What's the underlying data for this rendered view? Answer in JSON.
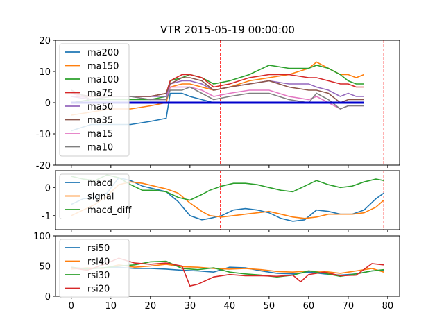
{
  "chart_data": [
    {
      "type": "line",
      "title": "VTR 2015-05-19 00:00:00",
      "xlim": [
        -4,
        83
      ],
      "ylim": [
        -20,
        20
      ],
      "yticks": [
        -20,
        -10,
        0,
        10,
        20
      ],
      "vlines": [
        37.7,
        79
      ],
      "baseline": {
        "x": [
          0,
          74
        ],
        "y": 0
      },
      "legend_position": "upper-left",
      "series": [
        {
          "name": "ma200",
          "color": "#1f77b4",
          "x": [
            0,
            5,
            10,
            15,
            20,
            24,
            25,
            28,
            30,
            33,
            36,
            40,
            45,
            50,
            55,
            60,
            62,
            65,
            68,
            70,
            72,
            74
          ],
          "y": [
            -9,
            -7,
            -7,
            -7,
            -6,
            -5,
            3,
            3,
            2,
            1,
            0,
            0,
            0,
            0,
            0,
            0,
            0,
            0,
            0,
            0,
            0,
            0
          ]
        },
        {
          "name": "ma150",
          "color": "#ff7f0e",
          "x": [
            0,
            5,
            10,
            15,
            20,
            24,
            25,
            28,
            30,
            33,
            36,
            40,
            45,
            50,
            55,
            60,
            62,
            65,
            68,
            70,
            72,
            74
          ],
          "y": [
            -4,
            -3,
            -2,
            -2,
            -1,
            0,
            5,
            6,
            6,
            5,
            4,
            5,
            7,
            8,
            9,
            11,
            13,
            11,
            9,
            9,
            8,
            9
          ]
        },
        {
          "name": "ma100",
          "color": "#2ca02c",
          "x": [
            0,
            5,
            10,
            15,
            20,
            24,
            25,
            28,
            30,
            33,
            36,
            40,
            45,
            50,
            55,
            60,
            62,
            65,
            68,
            70,
            72,
            74
          ],
          "y": [
            0,
            1,
            1,
            1,
            1,
            2,
            7,
            8,
            9,
            8,
            6,
            7,
            9,
            12,
            11,
            11,
            12,
            11,
            9,
            7,
            6,
            6
          ]
        },
        {
          "name": "ma75",
          "color": "#d62728",
          "x": [
            0,
            5,
            10,
            15,
            20,
            24,
            25,
            28,
            30,
            33,
            36,
            40,
            45,
            50,
            55,
            60,
            62,
            65,
            68,
            70,
            72,
            74
          ],
          "y": [
            2,
            2,
            2,
            2,
            2,
            3,
            7,
            9,
            9,
            8,
            5,
            6,
            8,
            9,
            9,
            8,
            8,
            7,
            6,
            6,
            5,
            5
          ]
        },
        {
          "name": "ma50",
          "color": "#9467bd",
          "x": [
            0,
            5,
            10,
            15,
            20,
            24,
            25,
            28,
            30,
            33,
            36,
            40,
            45,
            50,
            55,
            60,
            62,
            65,
            68,
            70,
            72,
            74
          ],
          "y": [
            2,
            1,
            2,
            2,
            2,
            2,
            6,
            7,
            7,
            6,
            4,
            5,
            6,
            7,
            6,
            6,
            5,
            4,
            2,
            3,
            2,
            2
          ]
        },
        {
          "name": "ma35",
          "color": "#8c564b",
          "x": [
            0,
            5,
            10,
            15,
            20,
            24,
            25,
            28,
            30,
            33,
            36,
            40,
            45,
            50,
            55,
            60,
            62,
            65,
            68,
            70,
            72,
            74
          ],
          "y": [
            3,
            2,
            2,
            2,
            2,
            3,
            6,
            8,
            8,
            7,
            4,
            5,
            6,
            7,
            5,
            4,
            4,
            3,
            0,
            1,
            1,
            1
          ]
        },
        {
          "name": "ma15",
          "color": "#e377c2",
          "x": [
            0,
            5,
            10,
            15,
            20,
            24,
            25,
            28,
            30,
            33,
            36,
            40,
            45,
            50,
            55,
            60,
            62,
            65,
            68,
            70,
            72,
            74
          ],
          "y": [
            3,
            1,
            2,
            2,
            1,
            1,
            5,
            5,
            5,
            4,
            2,
            3,
            4,
            4,
            2,
            1,
            2,
            0,
            -2,
            -1,
            -1,
            -1
          ]
        },
        {
          "name": "ma10",
          "color": "#7f7f7f",
          "x": [
            0,
            5,
            10,
            15,
            20,
            24,
            25,
            28,
            30,
            33,
            36,
            40,
            45,
            50,
            55,
            60,
            62,
            65,
            68,
            70,
            72,
            74
          ],
          "y": [
            4,
            1,
            2,
            2,
            1,
            1,
            4,
            4,
            5,
            3,
            1,
            2,
            3,
            3,
            1,
            0,
            3,
            1,
            -2,
            -1,
            -1,
            -1
          ]
        }
      ]
    },
    {
      "type": "line",
      "xlim": [
        -4,
        83
      ],
      "ylim": [
        -1.5,
        0.6
      ],
      "yticks": [
        -1,
        0
      ],
      "vlines": [
        37.7,
        79
      ],
      "legend_position": "upper-left",
      "series": [
        {
          "name": "macd",
          "color": "#1f77b4",
          "x": [
            0,
            3,
            6,
            9,
            12,
            15,
            18,
            21,
            24,
            27,
            30,
            33,
            35,
            38,
            41,
            44,
            47,
            50,
            53,
            56,
            59,
            62,
            65,
            68,
            71,
            74,
            77,
            79
          ],
          "y": [
            -0.6,
            -0.4,
            -0.35,
            -0.2,
            0.35,
            0.25,
            0.05,
            -0.05,
            -0.15,
            -0.5,
            -1.0,
            -1.15,
            -1.1,
            -1.0,
            -0.8,
            -0.75,
            -0.8,
            -0.9,
            -1.1,
            -1.2,
            -1.15,
            -0.8,
            -0.85,
            -0.95,
            -0.95,
            -0.8,
            -0.4,
            -0.2
          ]
        },
        {
          "name": "signal",
          "color": "#ff7f0e",
          "x": [
            0,
            3,
            6,
            9,
            12,
            15,
            18,
            21,
            24,
            27,
            30,
            33,
            35,
            38,
            41,
            44,
            47,
            50,
            53,
            56,
            59,
            62,
            65,
            68,
            71,
            74,
            77,
            79
          ],
          "y": [
            -1.0,
            -0.8,
            -0.6,
            -0.3,
            0.1,
            0.2,
            0.15,
            0.05,
            -0.05,
            -0.2,
            -0.55,
            -0.85,
            -1.0,
            -1.05,
            -1.0,
            -0.95,
            -0.9,
            -0.85,
            -0.95,
            -1.05,
            -1.1,
            -1.05,
            -0.95,
            -0.95,
            -0.95,
            -0.9,
            -0.7,
            -0.45
          ]
        },
        {
          "name": "macd_diff",
          "color": "#2ca02c",
          "x": [
            0,
            3,
            6,
            9,
            12,
            15,
            18,
            21,
            24,
            27,
            30,
            33,
            35,
            38,
            41,
            44,
            47,
            50,
            53,
            56,
            59,
            62,
            65,
            68,
            71,
            74,
            77,
            79
          ],
          "y": [
            0.4,
            0.3,
            0.25,
            0.45,
            0.35,
            0.1,
            -0.1,
            -0.1,
            -0.15,
            -0.35,
            -0.45,
            -0.25,
            -0.1,
            0.05,
            0.15,
            0.15,
            0.1,
            0.0,
            -0.1,
            -0.15,
            0.05,
            0.25,
            0.1,
            0.0,
            0.05,
            0.2,
            0.3,
            0.25
          ]
        }
      ]
    },
    {
      "type": "line",
      "xlim": [
        -4,
        83
      ],
      "ylim": [
        0,
        100
      ],
      "yticks": [
        0,
        50,
        100
      ],
      "xticks": [
        0,
        10,
        20,
        30,
        40,
        50,
        60,
        70,
        80
      ],
      "legend_position": "upper-left",
      "series": [
        {
          "name": "rsi50",
          "color": "#1f77b4",
          "x": [
            0,
            4,
            8,
            12,
            16,
            20,
            24,
            28,
            32,
            36,
            40,
            44,
            48,
            52,
            56,
            60,
            64,
            68,
            72,
            76,
            79
          ],
          "y": [
            47,
            46,
            47,
            48,
            46,
            46,
            45,
            43,
            42,
            40,
            48,
            47,
            42,
            38,
            37,
            40,
            37,
            35,
            37,
            42,
            43
          ]
        },
        {
          "name": "rsi40",
          "color": "#ff7f0e",
          "x": [
            0,
            4,
            8,
            12,
            16,
            20,
            24,
            28,
            32,
            36,
            40,
            44,
            48,
            52,
            56,
            60,
            64,
            68,
            72,
            76,
            79
          ],
          "y": [
            45,
            47,
            46,
            52,
            48,
            50,
            53,
            49,
            48,
            46,
            45,
            46,
            44,
            41,
            40,
            42,
            41,
            38,
            42,
            46,
            40
          ]
        },
        {
          "name": "rsi30",
          "color": "#2ca02c",
          "x": [
            0,
            4,
            8,
            12,
            16,
            20,
            24,
            28,
            32,
            36,
            40,
            44,
            48,
            52,
            56,
            60,
            64,
            68,
            72,
            76,
            79
          ],
          "y": [
            48,
            45,
            47,
            50,
            52,
            57,
            58,
            46,
            44,
            47,
            40,
            37,
            35,
            32,
            35,
            42,
            38,
            33,
            37,
            42,
            44
          ]
        },
        {
          "name": "rsi20",
          "color": "#d62728",
          "x": [
            0,
            4,
            8,
            12,
            16,
            20,
            24,
            28,
            30,
            32,
            36,
            40,
            44,
            48,
            52,
            56,
            58,
            60,
            64,
            68,
            72,
            76,
            79
          ],
          "y": [
            47,
            43,
            52,
            63,
            55,
            53,
            55,
            50,
            17,
            20,
            32,
            36,
            34,
            34,
            33,
            35,
            24,
            36,
            40,
            34,
            35,
            54,
            52
          ]
        }
      ]
    }
  ]
}
